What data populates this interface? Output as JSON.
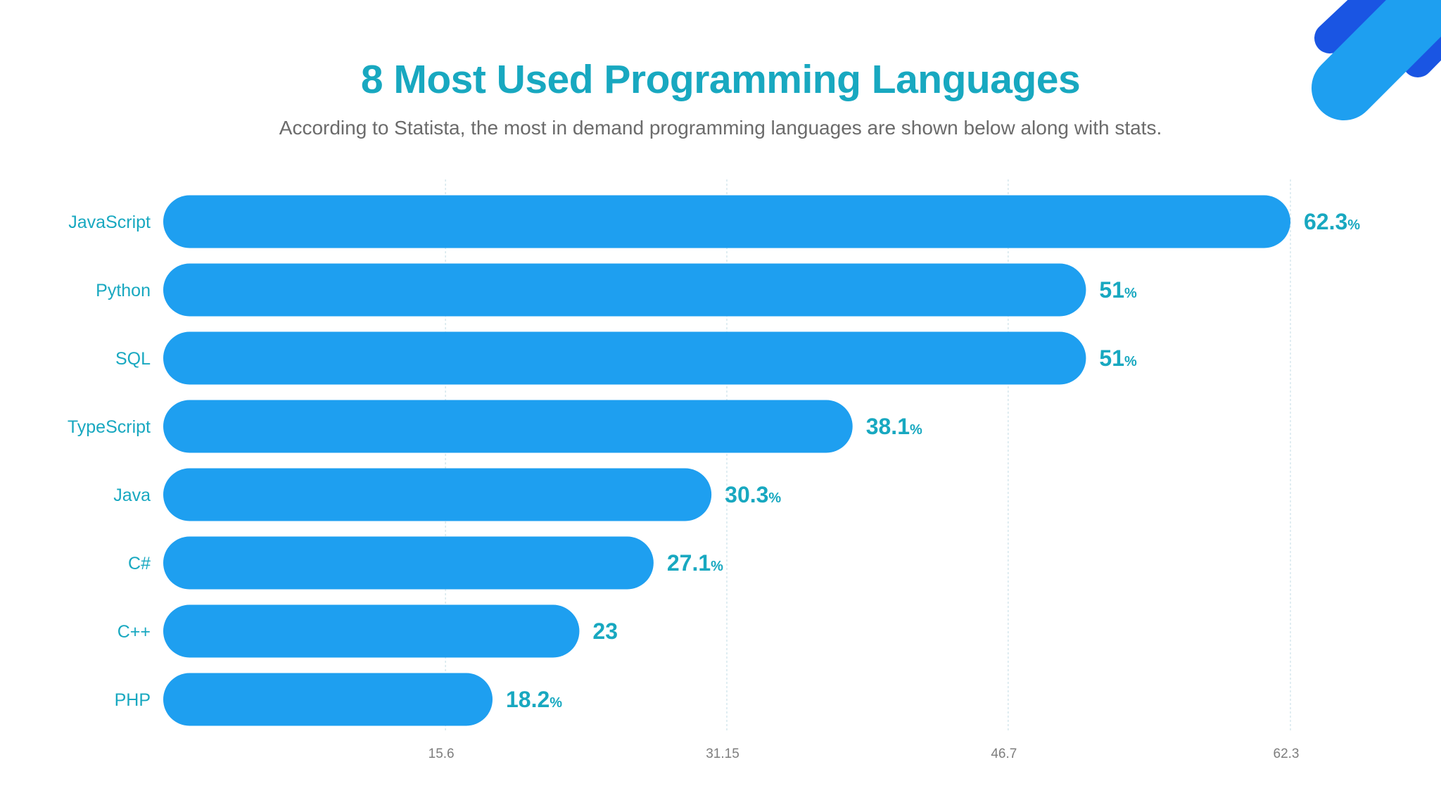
{
  "chart_data": {
    "type": "bar",
    "orientation": "horizontal",
    "title": "8 Most Used Programming Languages",
    "subtitle": "According to Statista, the most in demand programming languages are shown below along with stats.",
    "categories": [
      "JavaScript",
      "Python",
      "SQL",
      "TypeScript",
      "Java",
      "C#",
      "C++",
      "PHP"
    ],
    "values": [
      62.3,
      51,
      51,
      38.1,
      30.3,
      27.1,
      23,
      18.2
    ],
    "value_labels": [
      "62.3",
      "51",
      "51",
      "38.1",
      "30.3",
      "27.1",
      "23",
      "18.2"
    ],
    "value_units": [
      "%",
      "%",
      "%",
      "%",
      "%",
      "%",
      "",
      "%"
    ],
    "xticks": [
      15.6,
      31.15,
      46.7,
      62.3
    ],
    "xtick_labels": [
      "15.6",
      "31.15",
      "46.7",
      "62.3"
    ],
    "xlim": [
      0,
      62.3
    ],
    "xlabel": "",
    "ylabel": "",
    "grid": true,
    "colors": {
      "bar": "#1e9ff0",
      "text_accent": "#18a8c0",
      "subtitle": "#6b6b6b",
      "tick": "#7d7d7d",
      "decor_light": "#1e9ff0",
      "decor_dark": "#1a55e3"
    }
  }
}
